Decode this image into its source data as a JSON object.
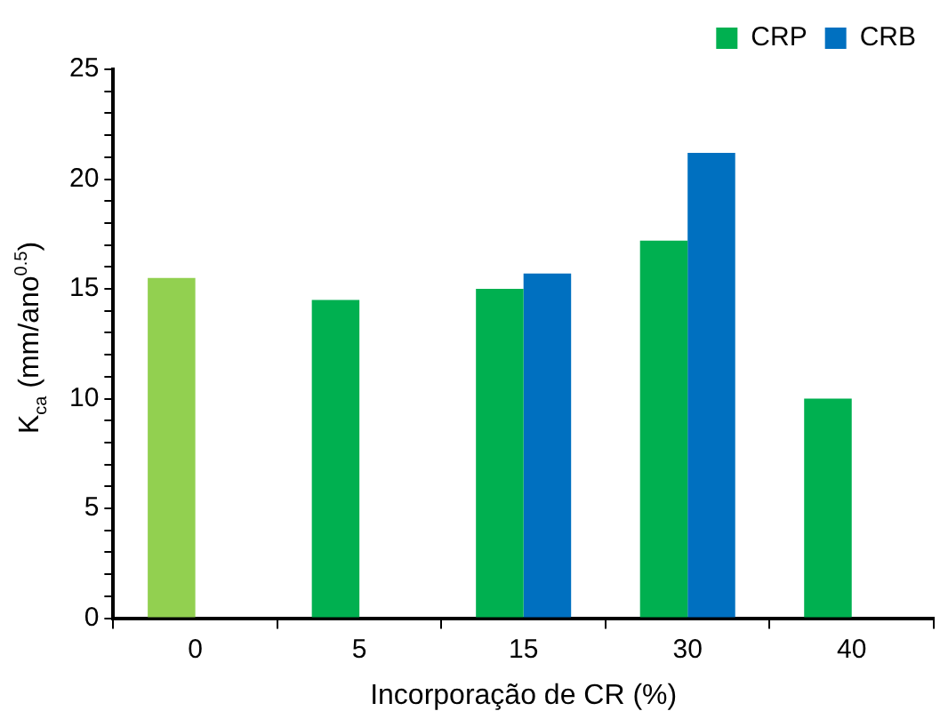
{
  "chart_data": {
    "type": "bar",
    "categories": [
      "0",
      "5",
      "15",
      "30",
      "40"
    ],
    "series": [
      {
        "name": "CRP",
        "color": "#00b050",
        "colors": [
          "#92d050",
          "#00b050",
          "#00b050",
          "#00b050",
          "#00b050"
        ],
        "values": [
          15.5,
          14.5,
          15.0,
          17.2,
          10.0
        ]
      },
      {
        "name": "CRB",
        "color": "#0070c0",
        "values": [
          null,
          null,
          15.7,
          21.2,
          null
        ]
      }
    ],
    "xlabel": "Incorporação de CR (%)",
    "ylabel": "K$_{ca}$ (mm/ano$^{0.5}$)",
    "ylim": [
      0,
      25
    ],
    "yticks": [
      0,
      {
        "value": 1,
        "label": null
      },
      {
        "value": 2,
        "label": null
      },
      {
        "value": 3,
        "label": null
      },
      {
        "value": 4,
        "label": null
      },
      5,
      {
        "value": 6,
        "label": null
      },
      {
        "value": 7,
        "label": null
      },
      {
        "value": 8,
        "label": null
      },
      {
        "value": 9,
        "label": null
      },
      10,
      {
        "value": 11,
        "label": null
      },
      {
        "value": 12,
        "label": null
      },
      {
        "value": 13,
        "label": null
      },
      {
        "value": 14,
        "label": null
      },
      15,
      {
        "value": 16,
        "label": null
      },
      {
        "value": 17,
        "label": null
      },
      {
        "value": 18,
        "label": null
      },
      {
        "value": 19,
        "label": null
      },
      20,
      {
        "value": 21,
        "label": null
      },
      {
        "value": 22,
        "label": null
      },
      {
        "value": 23,
        "label": null
      },
      {
        "value": 24,
        "label": null
      },
      25
    ],
    "grid": false,
    "legend": "top right"
  }
}
